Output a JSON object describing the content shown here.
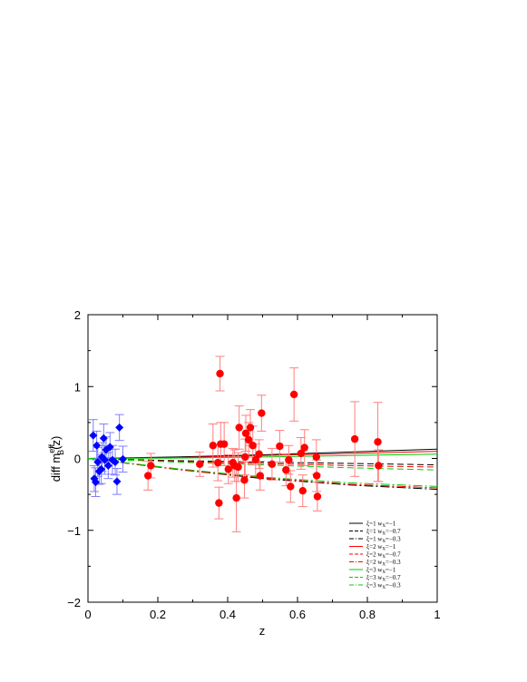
{
  "chart_data": {
    "type": "scatter",
    "xlabel": "z",
    "ylabel": "diff m",
    "ylabel_sup": "eff",
    "ylabel_sub": "B",
    "ylabel_tail": "(z)",
    "xlim": [
      0,
      1
    ],
    "ylim": [
      -2,
      2
    ],
    "xticks": [
      0,
      0.2,
      0.4,
      0.6,
      0.8,
      1
    ],
    "xtick_labels": [
      "0",
      "0.2",
      "0.4",
      "0.6",
      "0.8",
      "1"
    ],
    "yticks": [
      -2,
      -1,
      0,
      1,
      2
    ],
    "ytick_labels": [
      "−2",
      "−1",
      "0",
      "1",
      "2"
    ],
    "grid": false,
    "legend_position": "bottom-right",
    "series": [
      {
        "marker": "diamond",
        "color": "#0000ff",
        "errcolor": "#7f7fff",
        "points": [
          {
            "x": 0.015,
            "y": 0.32,
            "e": 0.22
          },
          {
            "x": 0.018,
            "y": -0.28,
            "e": 0.18
          },
          {
            "x": 0.022,
            "y": -0.33,
            "e": 0.2
          },
          {
            "x": 0.025,
            "y": 0.18,
            "e": 0.2
          },
          {
            "x": 0.028,
            "y": -0.05,
            "e": 0.2
          },
          {
            "x": 0.032,
            "y": -0.18,
            "e": 0.18
          },
          {
            "x": 0.038,
            "y": -0.15,
            "e": 0.2
          },
          {
            "x": 0.04,
            "y": 0.02,
            "e": 0.2
          },
          {
            "x": 0.045,
            "y": 0.28,
            "e": 0.2
          },
          {
            "x": 0.048,
            "y": -0.02,
            "e": 0.2
          },
          {
            "x": 0.052,
            "y": 0.12,
            "e": 0.18
          },
          {
            "x": 0.058,
            "y": -0.1,
            "e": 0.18
          },
          {
            "x": 0.063,
            "y": 0.16,
            "e": 0.2
          },
          {
            "x": 0.07,
            "y": -0.02,
            "e": 0.2
          },
          {
            "x": 0.078,
            "y": -0.05,
            "e": 0.18
          },
          {
            "x": 0.083,
            "y": -0.32,
            "e": 0.18
          },
          {
            "x": 0.09,
            "y": 0.43,
            "e": 0.18
          },
          {
            "x": 0.1,
            "y": -0.01,
            "e": 0.18
          }
        ]
      },
      {
        "marker": "circle",
        "color": "#ff0000",
        "errcolor": "#ff7f7f",
        "points": [
          {
            "x": 0.172,
            "y": -0.24,
            "e": 0.2
          },
          {
            "x": 0.18,
            "y": -0.1,
            "e": 0.17
          },
          {
            "x": 0.32,
            "y": -0.08,
            "e": 0.17
          },
          {
            "x": 0.358,
            "y": 0.18,
            "e": 0.3
          },
          {
            "x": 0.372,
            "y": -0.06,
            "e": 0.25
          },
          {
            "x": 0.375,
            "y": -0.62,
            "e": 0.22
          },
          {
            "x": 0.378,
            "y": 1.18,
            "e": 0.24
          },
          {
            "x": 0.38,
            "y": 0.2,
            "e": 0.3
          },
          {
            "x": 0.39,
            "y": 0.2,
            "e": 0.3
          },
          {
            "x": 0.402,
            "y": -0.15,
            "e": 0.2
          },
          {
            "x": 0.415,
            "y": -0.06,
            "e": 0.2
          },
          {
            "x": 0.42,
            "y": -0.1,
            "e": 0.22
          },
          {
            "x": 0.425,
            "y": -0.55,
            "e": 0.47
          },
          {
            "x": 0.43,
            "y": -0.12,
            "e": 0.2
          },
          {
            "x": 0.433,
            "y": 0.43,
            "e": 0.3
          },
          {
            "x": 0.448,
            "y": -0.3,
            "e": 0.25
          },
          {
            "x": 0.45,
            "y": 0.02,
            "e": 0.25
          },
          {
            "x": 0.452,
            "y": 0.35,
            "e": 0.25
          },
          {
            "x": 0.46,
            "y": 0.26,
            "e": 0.24
          },
          {
            "x": 0.465,
            "y": 0.43,
            "e": 0.25
          },
          {
            "x": 0.472,
            "y": 0.18,
            "e": 0.27
          },
          {
            "x": 0.48,
            "y": -0.02,
            "e": 0.22
          },
          {
            "x": 0.49,
            "y": 0.06,
            "e": 0.2
          },
          {
            "x": 0.493,
            "y": -0.24,
            "e": 0.2
          },
          {
            "x": 0.497,
            "y": 0.63,
            "e": 0.25
          },
          {
            "x": 0.527,
            "y": -0.08,
            "e": 0.22
          },
          {
            "x": 0.549,
            "y": 0.17,
            "e": 0.22
          },
          {
            "x": 0.567,
            "y": -0.16,
            "e": 0.22
          },
          {
            "x": 0.575,
            "y": -0.02,
            "e": 0.2
          },
          {
            "x": 0.58,
            "y": -0.39,
            "e": 0.22
          },
          {
            "x": 0.59,
            "y": 0.89,
            "e": 0.37
          },
          {
            "x": 0.61,
            "y": 0.07,
            "e": 0.22
          },
          {
            "x": 0.615,
            "y": -0.45,
            "e": 0.22
          },
          {
            "x": 0.62,
            "y": 0.15,
            "e": 0.25
          },
          {
            "x": 0.654,
            "y": 0.02,
            "e": 0.24
          },
          {
            "x": 0.655,
            "y": -0.24,
            "e": 0.22
          },
          {
            "x": 0.657,
            "y": -0.53,
            "e": 0.2
          },
          {
            "x": 0.764,
            "y": 0.27,
            "e": 0.52
          },
          {
            "x": 0.83,
            "y": 0.23,
            "e": 0.55
          },
          {
            "x": 0.832,
            "y": -0.1,
            "e": 0.22
          }
        ]
      }
    ],
    "model_curves": [
      {
        "label_xi": "ξ=1",
        "label_w": "w",
        "label_sub": "X",
        "label_val": "=−1",
        "color": "#000000",
        "dash": "",
        "x": [
          0,
          0.25,
          0.5,
          0.75,
          1
        ],
        "y": [
          0,
          0.02,
          0.05,
          0.09,
          0.13
        ]
      },
      {
        "label_xi": "ξ=1",
        "label_w": "w",
        "label_sub": "X",
        "label_val": "=−0.7",
        "color": "#000000",
        "dash": "7,4",
        "x": [
          0,
          0.25,
          0.5,
          0.75,
          1
        ],
        "y": [
          0,
          -0.03,
          -0.05,
          -0.07,
          -0.09
        ]
      },
      {
        "label_xi": "ξ=1",
        "label_w": "w",
        "label_sub": "X",
        "label_val": "=−0.3",
        "color": "#000000",
        "dash": "10,3,2,3",
        "x": [
          0,
          0.25,
          0.5,
          0.75,
          1
        ],
        "y": [
          0,
          -0.15,
          -0.28,
          -0.37,
          -0.43
        ]
      },
      {
        "label_xi": "ξ=2",
        "label_w": "w",
        "label_sub": "X",
        "label_val": "=−1",
        "color": "#ff0000",
        "dash": "",
        "x": [
          0,
          0.25,
          0.5,
          0.75,
          1
        ],
        "y": [
          0,
          0.01,
          0.04,
          0.07,
          0.1
        ]
      },
      {
        "label_xi": "ξ=2",
        "label_w": "w",
        "label_sub": "X",
        "label_val": "=−0.7",
        "color": "#ff0000",
        "dash": "7,4",
        "x": [
          0,
          0.25,
          0.5,
          0.75,
          1
        ],
        "y": [
          0,
          -0.04,
          -0.07,
          -0.1,
          -0.12
        ]
      },
      {
        "label_xi": "ξ=2",
        "label_w": "w",
        "label_sub": "X",
        "label_val": "=−0.3",
        "color": "#ff0000",
        "dash": "10,3,2,3",
        "x": [
          0,
          0.25,
          0.5,
          0.75,
          1
        ],
        "y": [
          0,
          -0.15,
          -0.27,
          -0.36,
          -0.41
        ]
      },
      {
        "label_xi": "ξ=3",
        "label_w": "w",
        "label_sub": "X",
        "label_val": "=−1",
        "color": "#00cc00",
        "dash": "",
        "x": [
          0,
          0.25,
          0.5,
          0.75,
          1
        ],
        "y": [
          0,
          0.005,
          0.02,
          0.04,
          0.06
        ]
      },
      {
        "label_xi": "ξ=3",
        "label_w": "w",
        "label_sub": "X",
        "label_val": "=−0.7",
        "color": "#00cc00",
        "dash": "7,4",
        "x": [
          0,
          0.25,
          0.5,
          0.75,
          1
        ],
        "y": [
          0,
          -0.05,
          -0.09,
          -0.13,
          -0.16
        ]
      },
      {
        "label_xi": "ξ=3",
        "label_w": "w",
        "label_sub": "X",
        "label_val": "=−0.3",
        "color": "#00cc00",
        "dash": "10,3,2,3",
        "x": [
          0,
          0.25,
          0.5,
          0.75,
          1
        ],
        "y": [
          0,
          -0.14,
          -0.26,
          -0.34,
          -0.39
        ]
      }
    ]
  }
}
